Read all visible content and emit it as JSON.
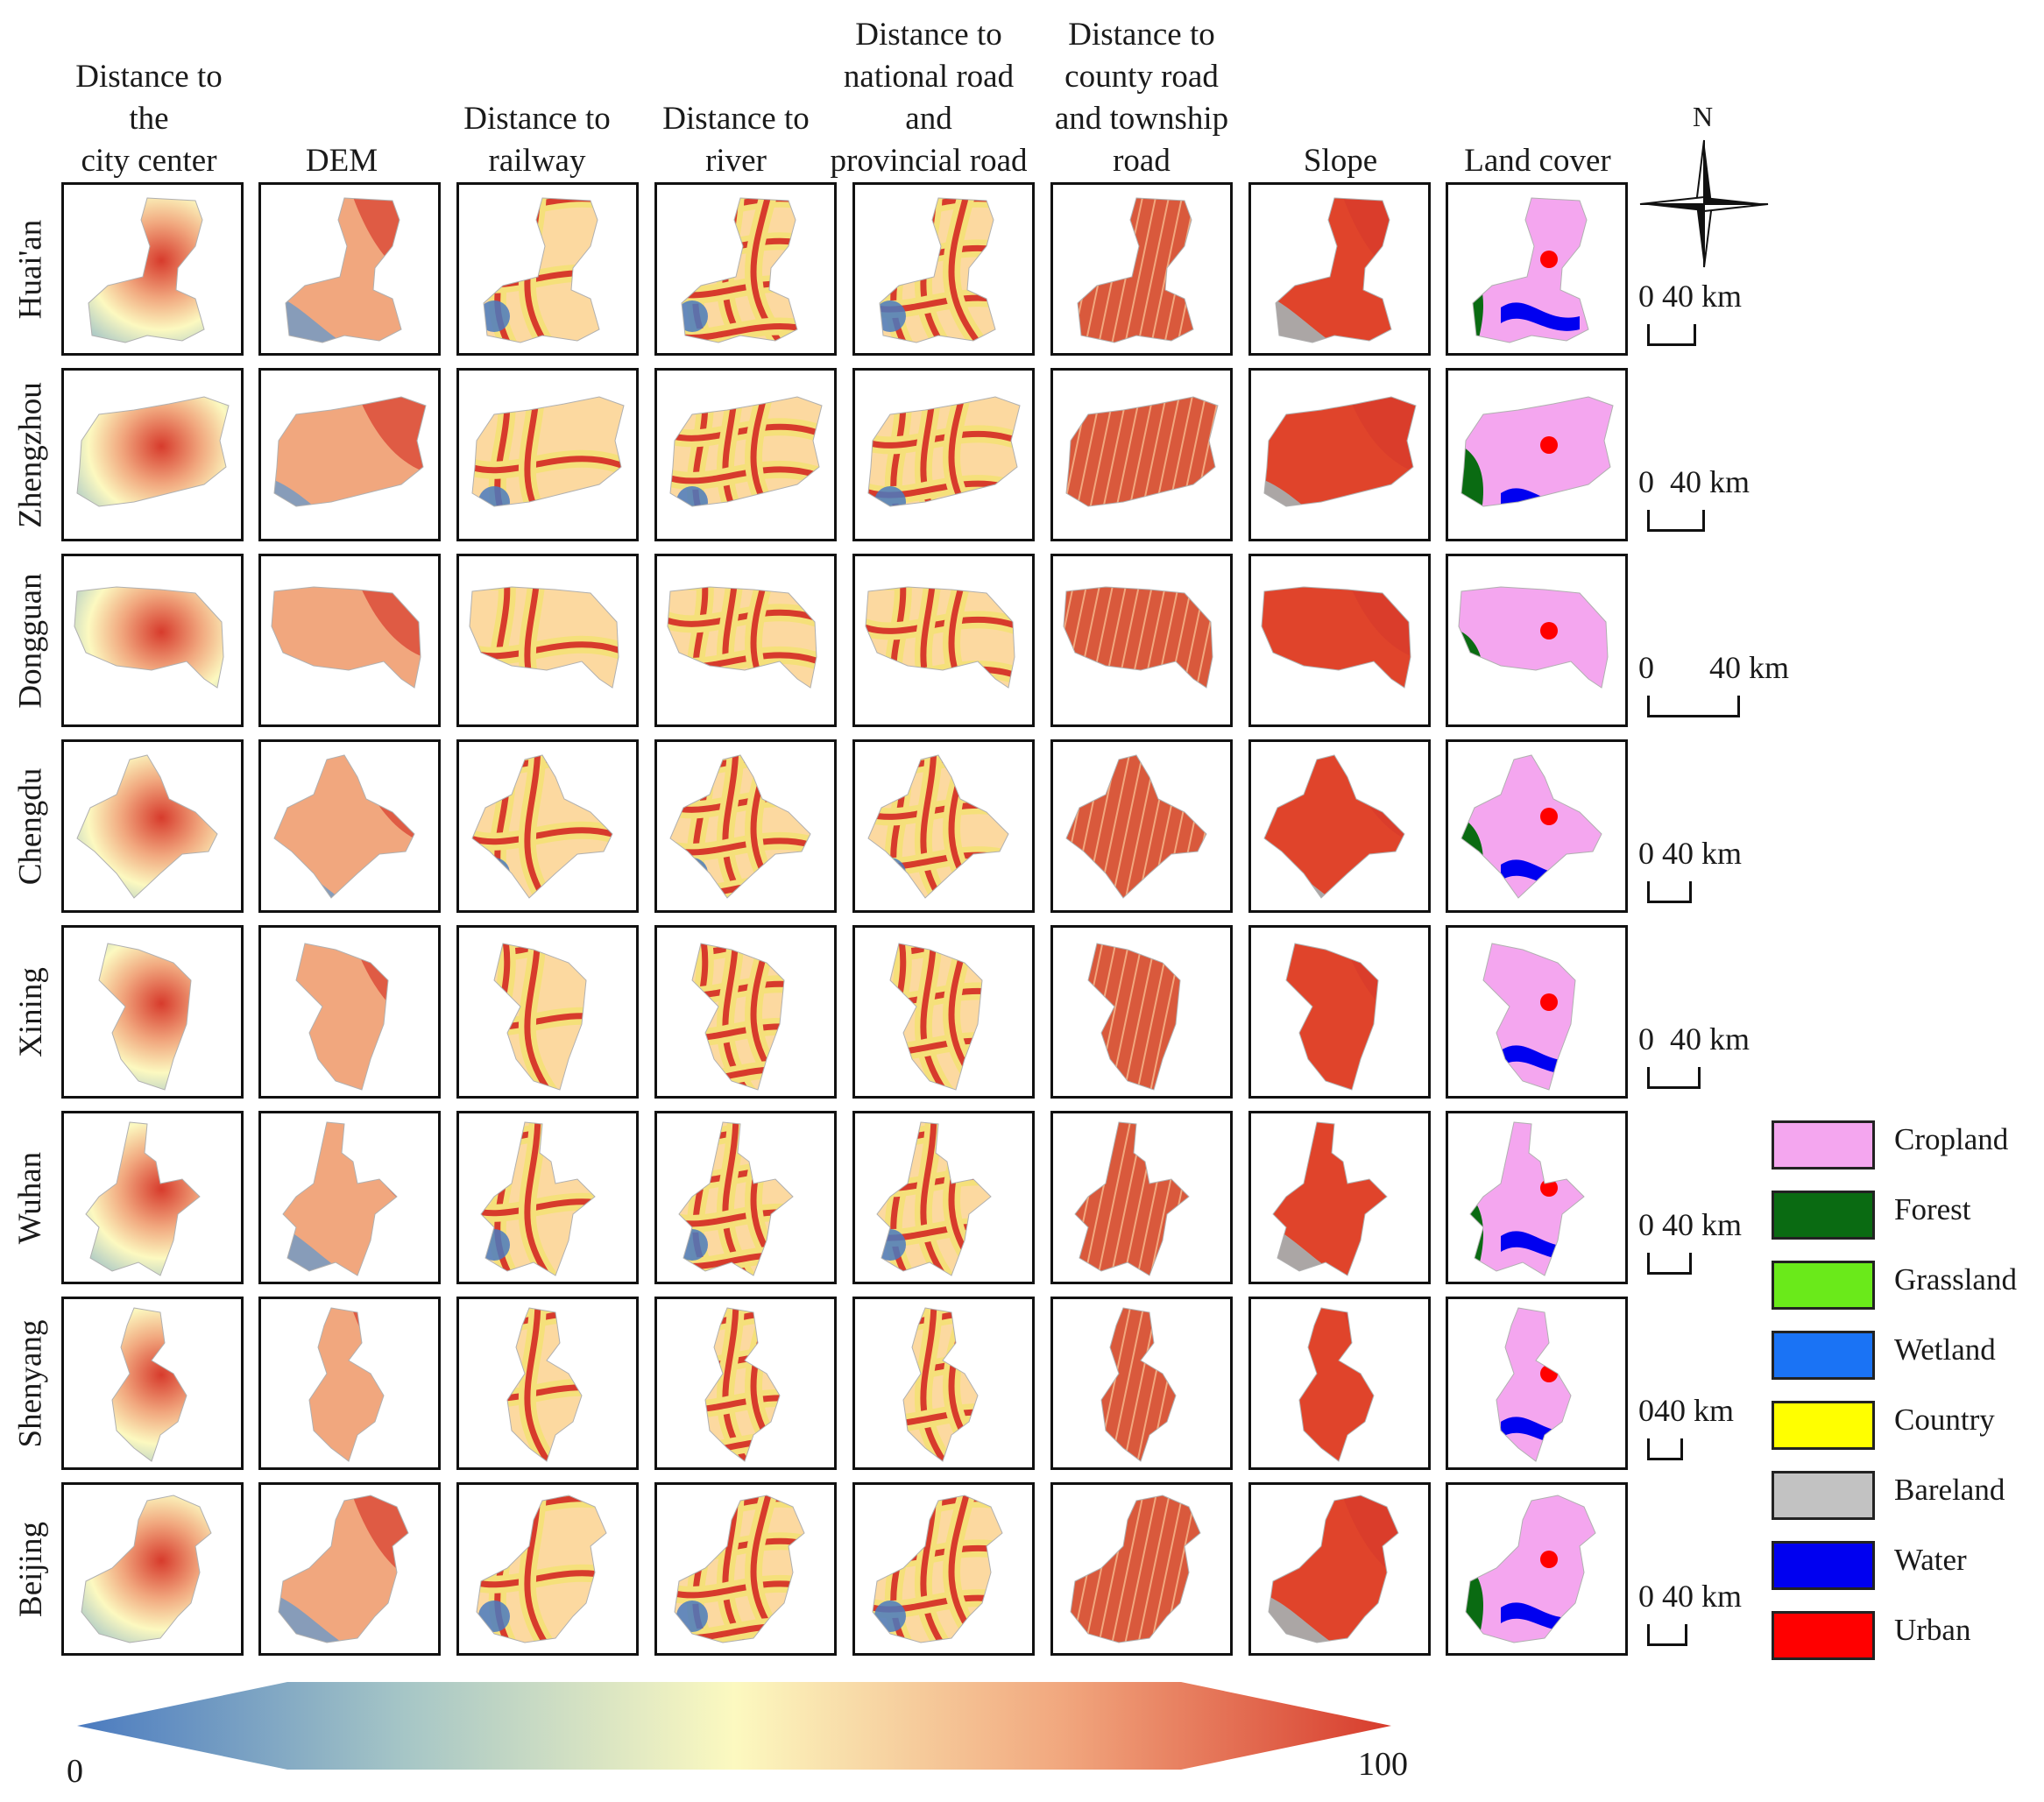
{
  "columns": [
    {
      "id": "city",
      "label": "Distance to the\ncity center"
    },
    {
      "id": "dem",
      "label": "DEM"
    },
    {
      "id": "rail",
      "label": "Distance to\nrailway"
    },
    {
      "id": "river",
      "label": "Distance to\nriver"
    },
    {
      "id": "nroad",
      "label": "Distance to\nnational road\nand\nprovincial road"
    },
    {
      "id": "croad",
      "label": "Distance to\ncounty road\nand township\nroad"
    },
    {
      "id": "slope",
      "label": "Slope"
    },
    {
      "id": "land",
      "label": "Land cover"
    }
  ],
  "cities": [
    {
      "name": "Huai'an",
      "scale_text": "0 40 km"
    },
    {
      "name": "Zhengzhou",
      "scale_text": "0  40 km"
    },
    {
      "name": "Dongguan",
      "scale_text": "0       40 km"
    },
    {
      "name": "Chengdu",
      "scale_text": "0 40 km"
    },
    {
      "name": "Xining",
      "scale_text": "0  40 km"
    },
    {
      "name": "Wuhan",
      "scale_text": "0 40 km"
    },
    {
      "name": "Shenyang",
      "scale_text": "040 km"
    },
    {
      "name": "Beijing",
      "scale_text": "0 40 km"
    }
  ],
  "north_arrow": {
    "label": "N"
  },
  "legend": [
    {
      "label": "Cropland",
      "color": "#f4a6ef"
    },
    {
      "label": "Forest",
      "color": "#0a6b12"
    },
    {
      "label": "Grassland",
      "color": "#6aea1a"
    },
    {
      "label": "Wetland",
      "color": "#1a73f5"
    },
    {
      "label": "Country",
      "color": "#ffff00"
    },
    {
      "label": "Bareland",
      "color": "#c2c2c2"
    },
    {
      "label": "Water",
      "color": "#0000f0"
    },
    {
      "label": "Urban",
      "color": "#ff0000"
    }
  ],
  "colorbar": {
    "min_label": "0",
    "max_label": "100",
    "colors": [
      "#4a7ac0",
      "#a6c6c6",
      "#fcf9c0",
      "#f1a77e",
      "#d73b2c"
    ]
  }
}
